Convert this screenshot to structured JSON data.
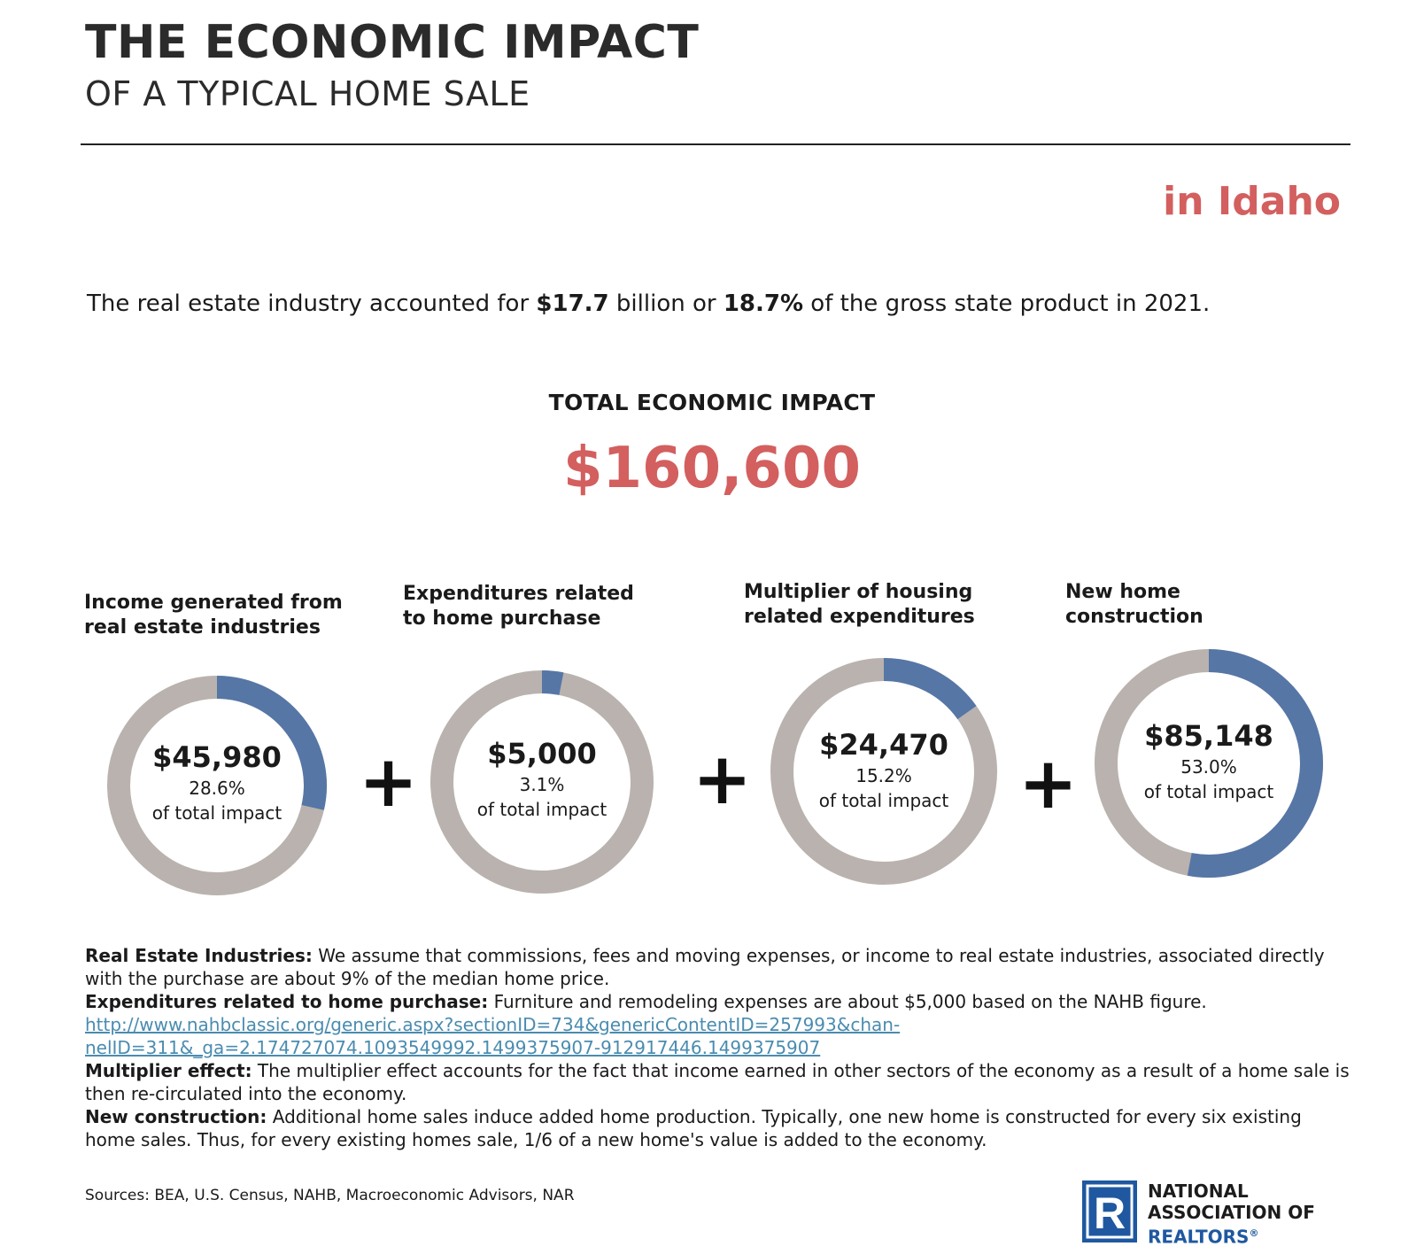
{
  "header": {
    "title": "THE ECONOMIC IMPACT",
    "subtitle": "OF A TYPICAL HOME SALE",
    "state": "in Idaho"
  },
  "intro": {
    "pre": "The real estate industry accounted for ",
    "amount": "$17.7",
    "mid": " billion or ",
    "percent": "18.7%",
    "post": " of the gross state product in 2021."
  },
  "total": {
    "label": "TOTAL ECONOMIC IMPACT",
    "value": "$160,600"
  },
  "plus_symbol": "+",
  "colors": {
    "accent_red": "#d35f5f",
    "donut_filled": "#5676a6",
    "donut_track": "#b9b2ae",
    "logo_blue": "#1f58a0"
  },
  "chart_data": [
    {
      "type": "pie",
      "title": "Income generated from real estate industries",
      "categories": [
        "share of total impact",
        "remainder"
      ],
      "values": [
        28.6,
        71.4
      ],
      "value_label": "$45,980",
      "percent_label": "28.6%",
      "caption": "of total impact"
    },
    {
      "type": "pie",
      "title": "Expenditures related to home purchase",
      "categories": [
        "share of total impact",
        "remainder"
      ],
      "values": [
        3.1,
        96.9
      ],
      "value_label": "$5,000",
      "percent_label": "3.1%",
      "caption": "of total impact"
    },
    {
      "type": "pie",
      "title": "Multiplier of housing related expenditures",
      "categories": [
        "share of total impact",
        "remainder"
      ],
      "values": [
        15.2,
        84.8
      ],
      "value_label": "$24,470",
      "percent_label": "15.2%",
      "caption": "of total impact"
    },
    {
      "type": "pie",
      "title": "New home construction",
      "categories": [
        "share of total impact",
        "remainder"
      ],
      "values": [
        53.0,
        47.0
      ],
      "value_label": "$85,148",
      "percent_label": "53.0%",
      "caption": "of total impact"
    }
  ],
  "donut_titles": [
    [
      "Income generated from",
      "real estate industries"
    ],
    [
      "Expenditures related",
      "to home purchase"
    ],
    [
      "Multiplier of housing",
      "related expenditures"
    ],
    [
      "New home",
      "construction"
    ]
  ],
  "notes": {
    "n1_label": "Real Estate Industries:",
    "n1_text": " We assume that commissions, fees and moving expenses, or income to real estate industries, associated directly with the purchase are about 9% of the median home price.",
    "n2_label": "Expenditures related to home purchase:",
    "n2_text": " Furniture and remodeling expenses are about $5,000 based on the NAHB figure.",
    "n2_link_line1": "http://www.nahbclassic.org/generic.aspx?sectionID=734&genericContentID=257993&chan-",
    "n2_link_line2": "nelID=311&_ga=2.174727074.1093549992.1499375907-912917446.1499375907",
    "n3_label": "Multiplier effect:",
    "n3_text": " The multiplier effect accounts for the fact that income earned in other sectors of the economy as a result of a home sale is then re-circulated into the economy.",
    "n4_label": "New construction:",
    "n4_text": " Additional home sales induce added home production. Typically, one new home is constructed for every six existing home sales. Thus, for every existing homes sale, 1/6 of a new home's value is added to the economy."
  },
  "sources": "Sources: BEA, U.S. Census, NAHB, Macroeconomic Advisors, NAR",
  "logo": {
    "letter": "R",
    "line1": "NATIONAL",
    "line2": "ASSOCIATION OF",
    "line3": "REALTORS",
    "reg": "®"
  }
}
